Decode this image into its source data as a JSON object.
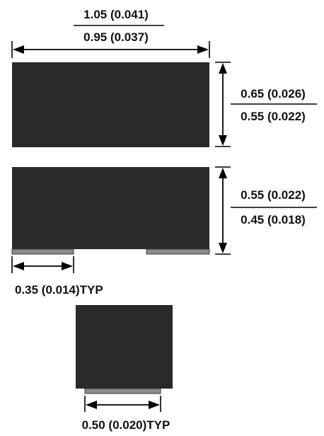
{
  "colors": {
    "component_body": "#2a2a2a",
    "terminal_pad": "#8c8c8c",
    "dimension_lines": "#000000",
    "background": "#ffffff"
  },
  "dimensions": {
    "length": {
      "max": "1.05 (0.041)",
      "min": "0.95 (0.037)"
    },
    "width": {
      "max": "0.65 (0.026)",
      "min": "0.55 (0.022)"
    },
    "height": {
      "max": "0.55 (0.022)",
      "min": "0.45 (0.018)"
    },
    "terminal_length": "0.35 (0.014)TYP",
    "terminal_width": "0.50 (0.020)TYP"
  }
}
